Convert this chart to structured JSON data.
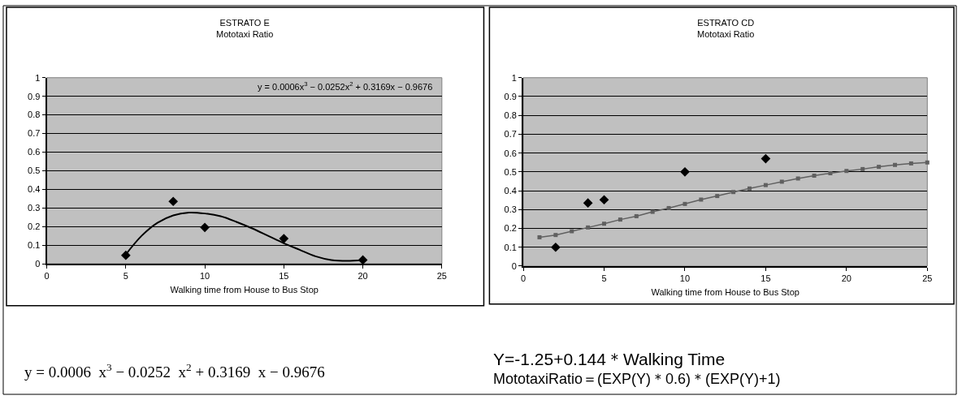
{
  "chart_data": [
    {
      "type": "scatter",
      "title": "ESTRATO E",
      "subtitle": "Mototaxi Ratio",
      "xlabel": "Walking time from House to Bus Stop",
      "xlim": [
        0,
        25
      ],
      "xticks": [
        0,
        5,
        10,
        15,
        20,
        25
      ],
      "ylim": [
        0,
        1
      ],
      "yticks": [
        0,
        0.1,
        0.2,
        0.3,
        0.4,
        0.5,
        0.6,
        0.7,
        0.8,
        0.9,
        1
      ],
      "grid": "y",
      "series": [
        {
          "marker": "diamond",
          "color": "#000000",
          "x": [
            5,
            8,
            10,
            15,
            20
          ],
          "values": [
            0.045,
            0.335,
            0.195,
            0.135,
            0.02
          ]
        },
        {
          "type": "line",
          "marker": "none",
          "color": "#000000",
          "x": [
            5,
            6,
            7,
            8,
            9,
            10,
            11,
            12,
            13,
            14,
            15,
            16,
            17,
            18,
            19,
            20
          ],
          "values": [
            0.05,
            0.15,
            0.22,
            0.26,
            0.275,
            0.27,
            0.255,
            0.225,
            0.19,
            0.15,
            0.11,
            0.075,
            0.04,
            0.02,
            0.015,
            0.02
          ]
        }
      ],
      "annotations": [
        "y = 0.0006x$^{3}$ − 0.0252x$^{2}$ + 0.3169x − 0.9676",
        "y = 0.0006  x$^{3}$ − 0.0252  x$^{2}$ + 0.3169  x − 0.9676"
      ]
    },
    {
      "type": "scatter",
      "title": "ESTRATO CD",
      "subtitle": "Mototaxi Ratio",
      "xlabel": "Walking time from House to Bus Stop",
      "xlim": [
        0,
        25
      ],
      "xticks": [
        0,
        5,
        10,
        15,
        20,
        25
      ],
      "ylim": [
        0,
        1
      ],
      "yticks": [
        0,
        0.1,
        0.2,
        0.3,
        0.4,
        0.5,
        0.6,
        0.7,
        0.8,
        0.9,
        1
      ],
      "grid": "y",
      "series": [
        {
          "marker": "diamond",
          "color": "#000000",
          "x": [
            2,
            4,
            5,
            10,
            15
          ],
          "values": [
            0.1,
            0.335,
            0.352,
            0.5,
            0.57
          ]
        },
        {
          "type": "line",
          "marker": "square",
          "color": "#606060",
          "x": [
            1,
            2,
            3,
            4,
            5,
            6,
            7,
            8,
            9,
            10,
            11,
            12,
            13,
            14,
            15,
            16,
            17,
            18,
            19,
            20,
            21,
            22,
            23,
            24,
            25
          ],
          "values": [
            0.153,
            0.165,
            0.185,
            0.205,
            0.225,
            0.247,
            0.265,
            0.288,
            0.308,
            0.33,
            0.353,
            0.372,
            0.393,
            0.412,
            0.43,
            0.448,
            0.465,
            0.48,
            0.493,
            0.505,
            0.515,
            0.527,
            0.537,
            0.545,
            0.55
          ]
        }
      ],
      "annotations": [
        "Y=-1.25+0.144＊Walking Time",
        "MototaxiRatio＝(EXP(Y)＊0.6)＊(EXP(Y)+1)"
      ]
    }
  ]
}
